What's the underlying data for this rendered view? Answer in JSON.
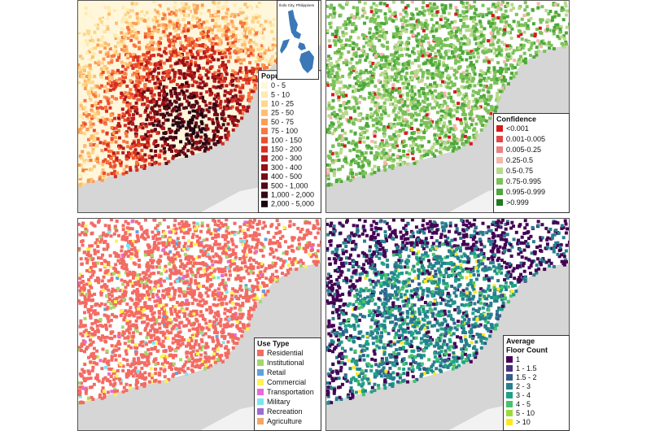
{
  "inset": {
    "title": "Iloilo City, Philippines"
  },
  "panels": [
    {
      "legend": {
        "title": [
          "Population"
        ],
        "items": [
          {
            "label": "0 - 5",
            "color": "#fff8d5"
          },
          {
            "label": "5 - 10",
            "color": "#fdebb0"
          },
          {
            "label": "10 - 25",
            "color": "#fdd88a"
          },
          {
            "label": "25 - 50",
            "color": "#fdbf6f"
          },
          {
            "label": "50 - 75",
            "color": "#fc9d55"
          },
          {
            "label": "75 - 100",
            "color": "#f8773f"
          },
          {
            "label": "100 - 150",
            "color": "#ec4e2d"
          },
          {
            "label": "150 - 200",
            "color": "#d6301f"
          },
          {
            "label": "200 - 300",
            "color": "#b81b1a"
          },
          {
            "label": "300 - 400",
            "color": "#951017"
          },
          {
            "label": "400 - 500",
            "color": "#720c18"
          },
          {
            "label": "500 - 1,000",
            "color": "#520a16"
          },
          {
            "label": "1,000 - 2,000",
            "color": "#350714"
          },
          {
            "label": "2,000 - 5,000",
            "color": "#1c0510"
          }
        ]
      }
    },
    {
      "legend": {
        "title": [
          "Confidence"
        ],
        "items": [
          {
            "label": "<0.001",
            "color": "#d7191c"
          },
          {
            "label": "0.001-0.005",
            "color": "#e04848"
          },
          {
            "label": "0.005-0.25",
            "color": "#ea8080"
          },
          {
            "label": "0.25-0.5",
            "color": "#f4b8a8"
          },
          {
            "label": "0.5-0.75",
            "color": "#b8d98a"
          },
          {
            "label": "0.75-0.995",
            "color": "#7cc15a"
          },
          {
            "label": "0.995-0.999",
            "color": "#4da83b"
          },
          {
            "label": ">0.999",
            "color": "#1e7b1e"
          }
        ]
      }
    },
    {
      "legend": {
        "title": [
          "Use Type"
        ],
        "items": [
          {
            "label": "Residential",
            "color": "#f36b63"
          },
          {
            "label": "Institutional",
            "color": "#a5d66b"
          },
          {
            "label": "Retail",
            "color": "#5fa0e0"
          },
          {
            "label": "Commercial",
            "color": "#fff34f"
          },
          {
            "label": "Transportation",
            "color": "#e66bd6"
          },
          {
            "label": "Military",
            "color": "#7ae6f0"
          },
          {
            "label": "Recreation",
            "color": "#9b6bd6"
          },
          {
            "label": "Agriculture",
            "color": "#f2a864"
          }
        ]
      }
    },
    {
      "legend": {
        "title": [
          "Average",
          "Floor Count"
        ],
        "items": [
          {
            "label": "1",
            "color": "#440154"
          },
          {
            "label": "1 - 1.5",
            "color": "#46327e"
          },
          {
            "label": "1.5 - 2",
            "color": "#365c8d"
          },
          {
            "label": "2 - 3",
            "color": "#277f8e"
          },
          {
            "label": "3 - 4",
            "color": "#1fa187"
          },
          {
            "label": "4 - 5",
            "color": "#4ac16d"
          },
          {
            "label": "5 - 10",
            "color": "#a0da39"
          },
          {
            "label": "> 10",
            "color": "#fde725"
          }
        ]
      }
    }
  ]
}
